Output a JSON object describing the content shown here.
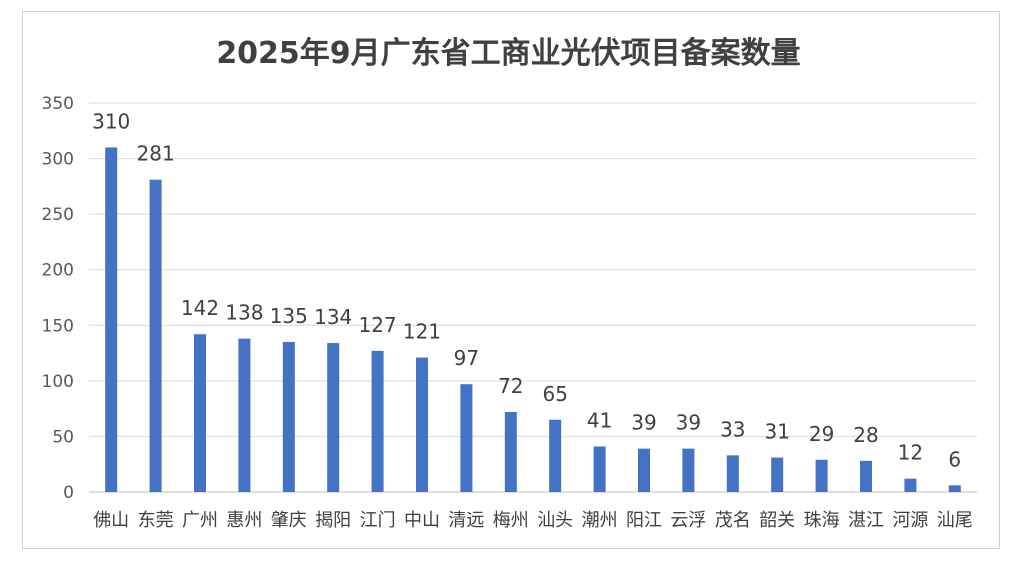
{
  "chart_data": {
    "type": "bar",
    "title": "2025年9月广东省工商业光伏项目备案数量",
    "xlabel": "",
    "ylabel": "",
    "ylim": [
      0,
      350
    ],
    "yticks": [
      0,
      50,
      100,
      150,
      200,
      250,
      300,
      350
    ],
    "grid": true,
    "legend": "none",
    "bar_color": "#4472c4",
    "categories": [
      "佛山",
      "东莞",
      "广州",
      "惠州",
      "肇庆",
      "揭阳",
      "江门",
      "中山",
      "清远",
      "梅州",
      "汕头",
      "潮州",
      "阳江",
      "云浮",
      "茂名",
      "韶关",
      "珠海",
      "湛江",
      "河源",
      "汕尾"
    ],
    "values": [
      310,
      281,
      142,
      138,
      135,
      134,
      127,
      121,
      97,
      72,
      65,
      41,
      39,
      39,
      33,
      31,
      29,
      28,
      12,
      6
    ]
  }
}
